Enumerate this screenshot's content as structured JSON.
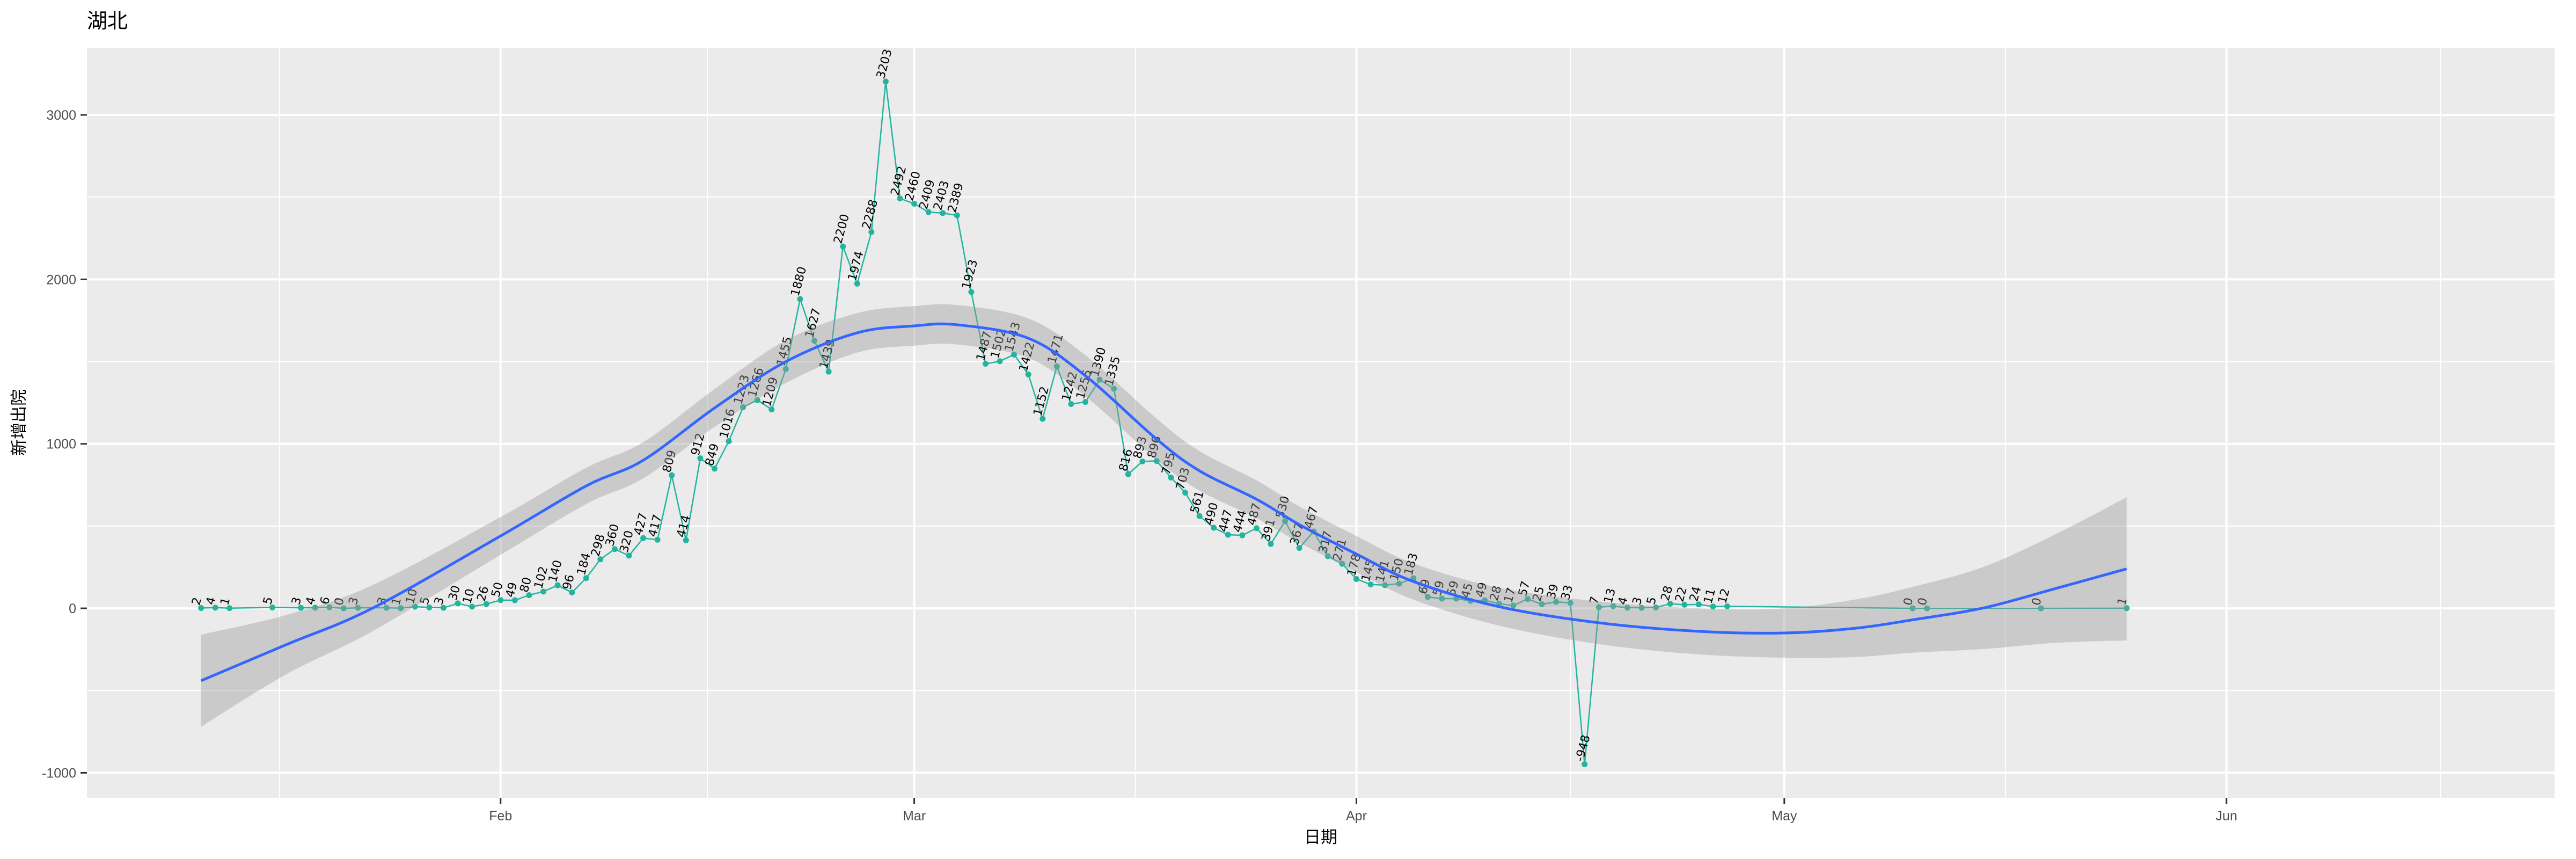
{
  "chart_data": {
    "type": "line",
    "title": "湖北",
    "xlabel": "日期",
    "ylabel": "新增出院",
    "xlim": [
      "2020-01-03",
      "2020-06-24"
    ],
    "ylim": [
      -1152,
      3408
    ],
    "grid": true,
    "legend": "none",
    "x_ticks": [
      {
        "date": "2020-02-01",
        "label": "Feb"
      },
      {
        "date": "2020-03-01",
        "label": "Mar"
      },
      {
        "date": "2020-04-01",
        "label": "Apr"
      },
      {
        "date": "2020-05-01",
        "label": "May"
      },
      {
        "date": "2020-06-01",
        "label": "Jun"
      }
    ],
    "y_ticks": [
      -1000,
      0,
      1000,
      2000,
      3000
    ],
    "y_tick_labels": [
      "-1000",
      "0",
      "1000",
      "2000",
      "3000"
    ],
    "series": [
      {
        "name": "新增出院",
        "color": "#23B49F",
        "x": [
          "2020-01-11",
          "2020-01-12",
          "2020-01-13",
          "2020-01-16",
          "2020-01-18",
          "2020-01-19",
          "2020-01-20",
          "2020-01-21",
          "2020-01-22",
          "2020-01-24",
          "2020-01-25",
          "2020-01-26",
          "2020-01-27",
          "2020-01-28",
          "2020-01-29",
          "2020-01-30",
          "2020-01-31",
          "2020-02-01",
          "2020-02-02",
          "2020-02-03",
          "2020-02-04",
          "2020-02-05",
          "2020-02-06",
          "2020-02-07",
          "2020-02-08",
          "2020-02-09",
          "2020-02-10",
          "2020-02-11",
          "2020-02-12",
          "2020-02-13",
          "2020-02-14",
          "2020-02-15",
          "2020-02-16",
          "2020-02-17",
          "2020-02-18",
          "2020-02-19",
          "2020-02-20",
          "2020-02-21",
          "2020-02-22",
          "2020-02-23",
          "2020-02-24",
          "2020-02-25",
          "2020-02-26",
          "2020-02-27",
          "2020-02-28",
          "2020-02-29",
          "2020-03-01",
          "2020-03-02",
          "2020-03-03",
          "2020-03-04",
          "2020-03-05",
          "2020-03-06",
          "2020-03-07",
          "2020-03-08",
          "2020-03-09",
          "2020-03-10",
          "2020-03-11",
          "2020-03-12",
          "2020-03-13",
          "2020-03-14",
          "2020-03-15",
          "2020-03-16",
          "2020-03-17",
          "2020-03-18",
          "2020-03-19",
          "2020-03-20",
          "2020-03-21",
          "2020-03-22",
          "2020-03-23",
          "2020-03-24",
          "2020-03-25",
          "2020-03-26",
          "2020-03-27",
          "2020-03-28",
          "2020-03-29",
          "2020-03-30",
          "2020-03-31",
          "2020-04-01",
          "2020-04-02",
          "2020-04-03",
          "2020-04-04",
          "2020-04-05",
          "2020-04-06",
          "2020-04-07",
          "2020-04-08",
          "2020-04-09",
          "2020-04-10",
          "2020-04-11",
          "2020-04-12",
          "2020-04-13",
          "2020-04-14",
          "2020-04-15",
          "2020-04-16",
          "2020-04-17",
          "2020-04-18",
          "2020-04-19",
          "2020-04-20",
          "2020-04-21",
          "2020-04-22",
          "2020-04-23",
          "2020-04-24",
          "2020-04-25",
          "2020-04-26",
          "2020-04-27",
          "2020-05-10",
          "2020-05-11",
          "2020-05-19",
          "2020-05-25"
        ],
        "values": [
          2,
          4,
          1,
          5,
          3,
          4,
          6,
          0,
          3,
          3,
          1,
          10,
          5,
          3,
          30,
          10,
          26,
          50,
          49,
          80,
          102,
          140,
          96,
          184,
          298,
          360,
          320,
          427,
          417,
          809,
          414,
          912,
          849,
          1016,
          1223,
          1266,
          1209,
          1455,
          1880,
          1627,
          1439,
          2200,
          1974,
          2288,
          3203,
          2492,
          2460,
          2409,
          2403,
          2389,
          1923,
          1487,
          1502,
          1543,
          1422,
          1152,
          1471,
          1242,
          1255,
          1390,
          1335,
          816,
          893,
          896,
          795,
          703,
          561,
          490,
          447,
          444,
          487,
          391,
          530,
          367,
          467,
          317,
          271,
          178,
          145,
          141,
          150,
          183,
          69,
          59,
          59,
          45,
          49,
          28,
          17,
          57,
          25,
          39,
          33,
          -948,
          7,
          13,
          4,
          3,
          5,
          28,
          22,
          24,
          11,
          12,
          0,
          0,
          0,
          1
        ],
        "labels": [
          "2",
          "4",
          "1",
          "5",
          "3",
          "4",
          "6",
          "0",
          "3",
          "3",
          "1",
          "10",
          "5",
          "3",
          "30",
          "10",
          "26",
          "50",
          "49",
          "80",
          "102",
          "140",
          "96",
          "184",
          "298",
          "360",
          "320",
          "427",
          "417",
          "809",
          "414",
          "912",
          "849",
          "1016",
          "1223",
          "1266",
          "1209",
          "1455",
          "1880",
          "1627",
          "1439",
          "2200",
          "1974",
          "2288",
          "3203",
          "2492",
          "2460",
          "2409",
          "2403",
          "2389",
          "1923",
          "1487",
          "1502",
          "1543",
          "1422",
          "1152",
          "1471",
          "1242",
          "1255",
          "1390",
          "1335",
          "816",
          "893",
          "896",
          "795",
          "703",
          "561",
          "490",
          "447",
          "444",
          "487",
          "391",
          "530",
          "367",
          "467",
          "317",
          "271",
          "178",
          "145",
          "141",
          "150",
          "183",
          "69",
          "59",
          "59",
          "45",
          "49",
          "28",
          "17",
          "57",
          "25",
          "39",
          "33",
          "-948",
          "7",
          "13",
          "4",
          "3",
          "5",
          "28",
          "22",
          "24",
          "11",
          "12",
          "0",
          "0",
          "0",
          "1"
        ]
      }
    ],
    "smooth": {
      "method": "loess",
      "color": "#3366FF",
      "ribbon_color": "#999999",
      "x": [
        "2020-01-11",
        "2020-01-17",
        "2020-01-23",
        "2020-02-01",
        "2020-02-07",
        "2020-02-11",
        "2020-02-16",
        "2020-02-21",
        "2020-02-26",
        "2020-03-01",
        "2020-03-04",
        "2020-03-09",
        "2020-03-13",
        "2020-03-18",
        "2020-03-21",
        "2020-03-25",
        "2020-03-28",
        "2020-04-01",
        "2020-04-05",
        "2020-04-11",
        "2020-04-18",
        "2020-04-25",
        "2020-05-01",
        "2020-05-06",
        "2020-05-10",
        "2020-05-15",
        "2020-05-20",
        "2020-05-25"
      ],
      "fit": [
        -440,
        -220,
        0,
        440,
        744,
        900,
        1218,
        1500,
        1675,
        1717,
        1724,
        1642,
        1414,
        1028,
        836,
        663,
        509,
        330,
        163,
        10,
        -88,
        -140,
        -150,
        -121,
        -70,
        3,
        120,
        240
      ],
      "se_band": [
        280,
        180,
        140,
        115,
        110,
        110,
        115,
        130,
        120,
        120,
        120,
        120,
        125,
        125,
        120,
        115,
        110,
        110,
        110,
        115,
        130,
        140,
        150,
        175,
        200,
        250,
        330,
        435
      ]
    }
  }
}
